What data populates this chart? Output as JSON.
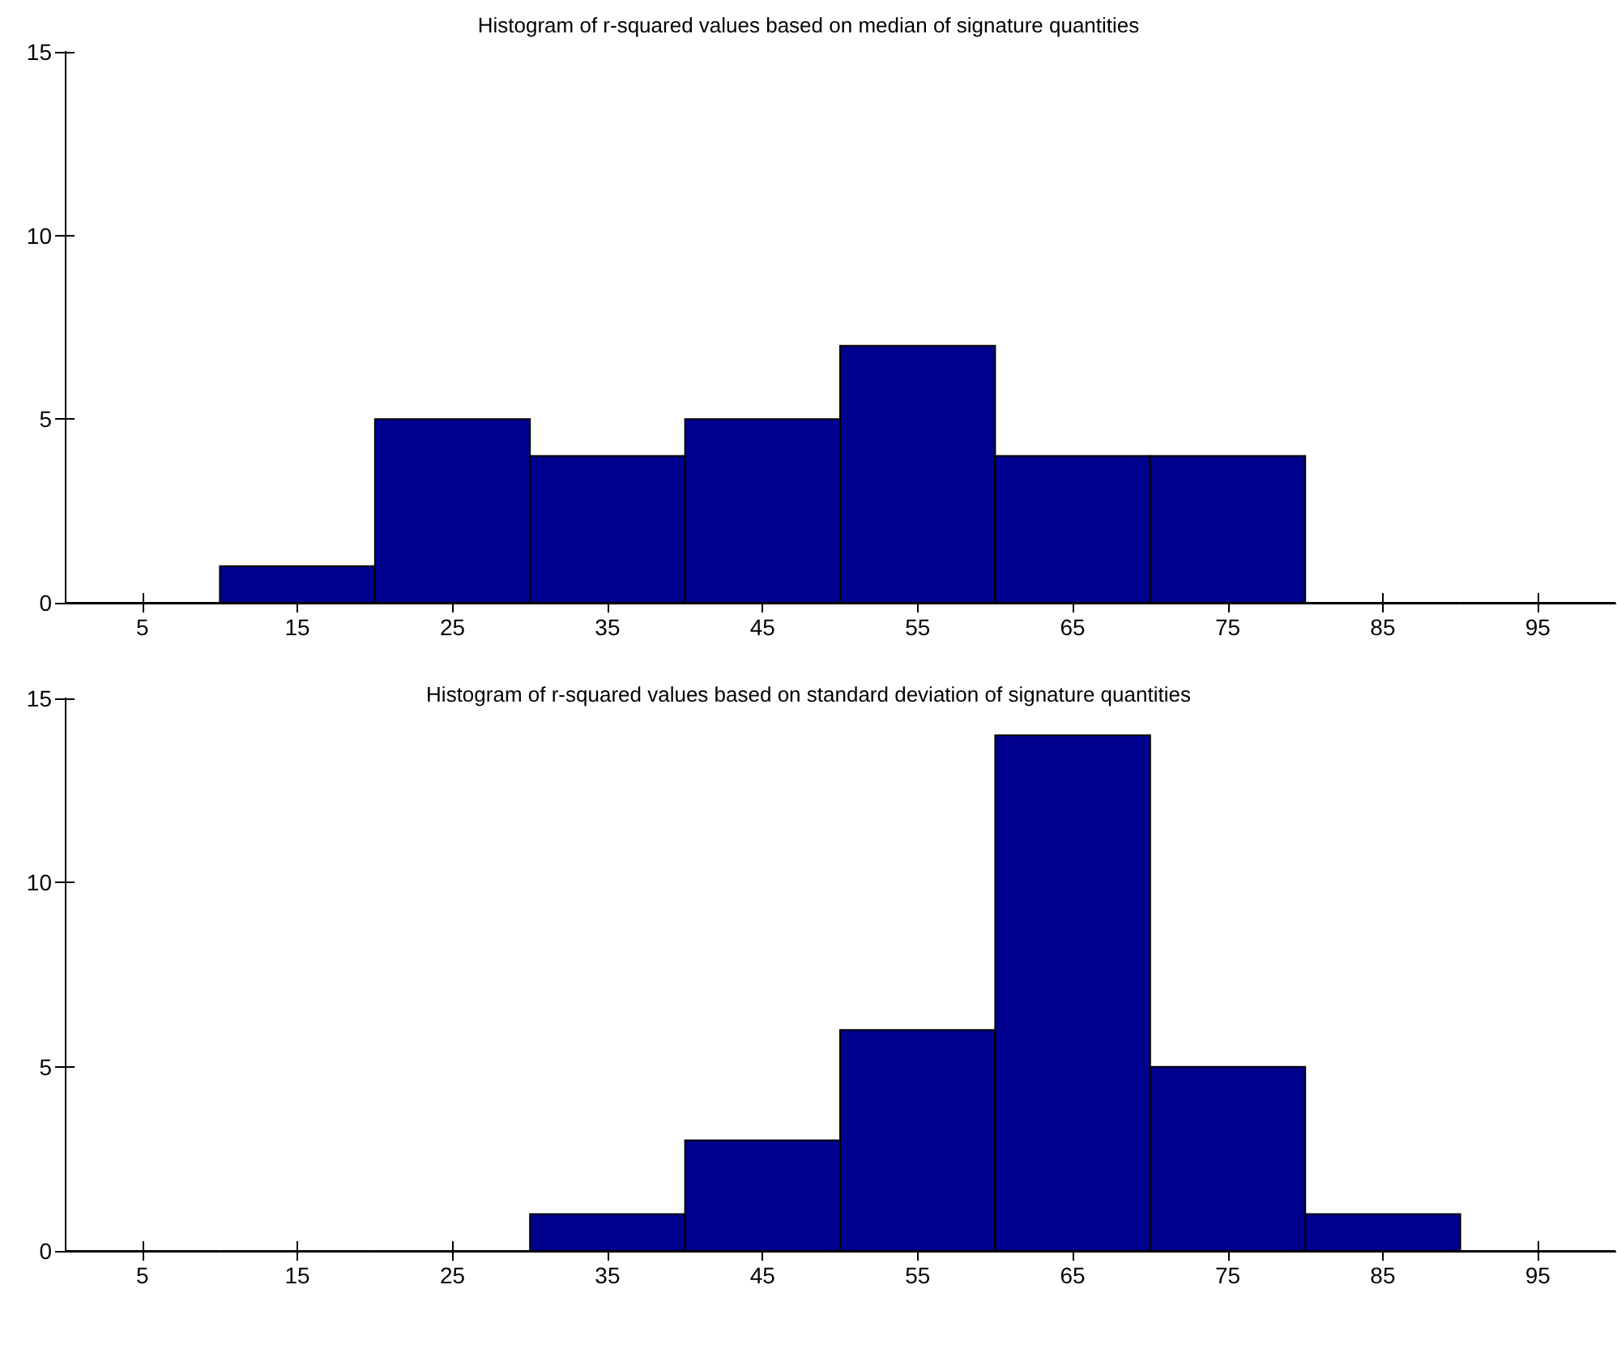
{
  "chart_data": [
    {
      "type": "histogram",
      "title": "Histogram of r-squared values based on median of signature quantities",
      "bins": [
        0,
        10,
        20,
        30,
        40,
        50,
        60,
        70,
        80,
        90,
        100
      ],
      "values": [
        0,
        1,
        5,
        4,
        5,
        7,
        4,
        4,
        0,
        0
      ],
      "color": "#00008f",
      "xlim": [
        0,
        100
      ],
      "xticks": [
        5,
        15,
        25,
        35,
        45,
        55,
        65,
        75,
        85,
        95
      ],
      "ylim": [
        0,
        15
      ],
      "yticks": [
        0,
        5,
        10,
        15
      ]
    },
    {
      "type": "histogram",
      "title": "Histogram of r-squared values based on standard deviation of signature quantities",
      "bins": [
        0,
        10,
        20,
        30,
        40,
        50,
        60,
        70,
        80,
        90,
        100
      ],
      "values": [
        0,
        0,
        0,
        1,
        3,
        6,
        14,
        5,
        1,
        0
      ],
      "color": "#00008f",
      "xlim": [
        0,
        100
      ],
      "xticks": [
        5,
        15,
        25,
        35,
        45,
        55,
        65,
        75,
        85,
        95
      ],
      "ylim": [
        0,
        15
      ],
      "yticks": [
        0,
        5,
        10,
        15
      ]
    }
  ]
}
